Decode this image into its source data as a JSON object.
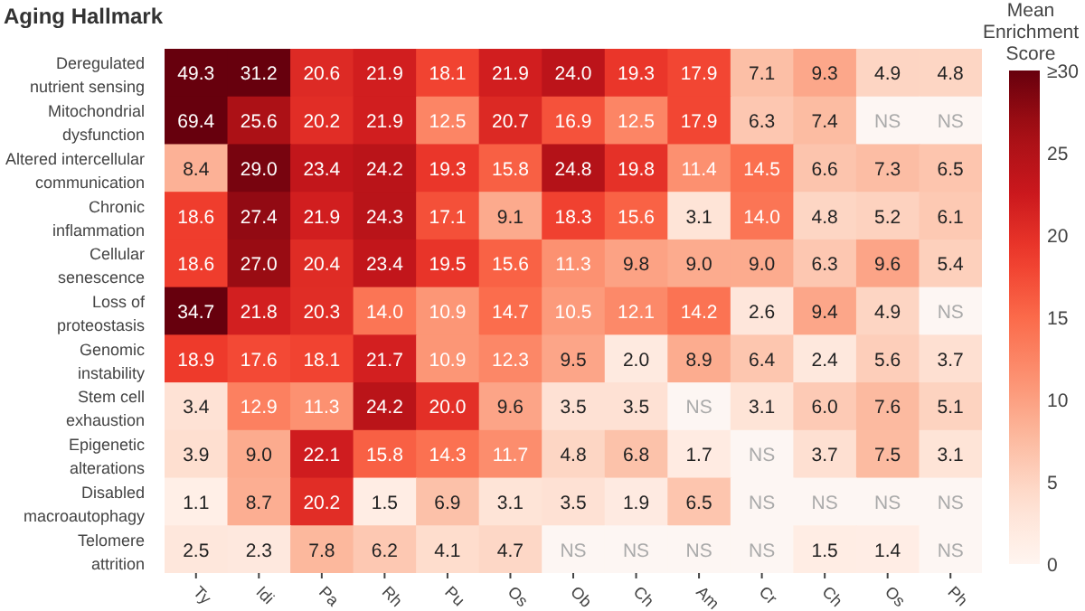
{
  "chart_data": {
    "type": "heatmap",
    "ylabel": "Aging Hallmark",
    "clabel": "Mean Enrichment Score",
    "categories": [
      "Ty",
      "Idi",
      "Pa",
      "Rh",
      "Pu",
      "Os",
      "Ob",
      "Ch",
      "Am",
      "Cr",
      "Ch",
      "Os",
      "Ph"
    ],
    "y_categories": [
      "Deregulated nutrient sensing",
      "Mitochondrial dysfunction",
      "Altered intercellular communication",
      "Chronic inflammation",
      "Cellular senescence",
      "Loss of proteostasis",
      "Genomic instability",
      "Stem cell exhaustion",
      "Epigenetic alterations",
      "Disabled macroautophagy",
      "Telomere attrition"
    ],
    "cells": [
      [
        49.3,
        31.2,
        20.6,
        21.9,
        18.1,
        21.9,
        24.0,
        19.3,
        17.9,
        7.1,
        9.3,
        4.9,
        4.8
      ],
      [
        69.4,
        25.6,
        20.2,
        21.9,
        12.5,
        20.7,
        16.9,
        12.5,
        17.9,
        6.3,
        7.4,
        null,
        null
      ],
      [
        8.4,
        29.0,
        23.4,
        24.2,
        19.3,
        15.8,
        24.8,
        19.8,
        11.4,
        14.5,
        6.6,
        7.3,
        6.5
      ],
      [
        18.6,
        27.4,
        21.9,
        24.3,
        17.1,
        9.1,
        18.3,
        15.6,
        3.1,
        14.0,
        4.8,
        5.2,
        6.1
      ],
      [
        18.6,
        27.0,
        20.4,
        23.4,
        19.5,
        15.6,
        11.3,
        9.8,
        9.0,
        9.0,
        6.3,
        9.6,
        5.4
      ],
      [
        34.7,
        21.8,
        20.3,
        14.0,
        10.9,
        14.7,
        10.5,
        12.1,
        14.2,
        2.6,
        9.4,
        4.9,
        null
      ],
      [
        18.9,
        17.6,
        18.1,
        21.7,
        10.9,
        12.3,
        9.5,
        2.0,
        8.9,
        6.4,
        2.4,
        5.6,
        3.7
      ],
      [
        3.4,
        12.9,
        11.3,
        24.2,
        20.0,
        9.6,
        3.5,
        3.5,
        null,
        3.1,
        6.0,
        7.6,
        5.1
      ],
      [
        3.9,
        9.0,
        22.1,
        15.8,
        14.3,
        11.7,
        4.8,
        6.8,
        1.7,
        null,
        3.7,
        7.5,
        3.1
      ],
      [
        1.1,
        8.7,
        20.2,
        1.5,
        6.9,
        3.1,
        3.5,
        1.9,
        6.5,
        null,
        null,
        null,
        null
      ],
      [
        2.5,
        2.3,
        7.8,
        6.2,
        4.1,
        4.7,
        null,
        null,
        null,
        null,
        1.5,
        1.4,
        null
      ]
    ],
    "cell_labels": [
      [
        "49.3",
        "31.2",
        "20.6",
        "21.9",
        "18.1",
        "21.9",
        "24.0",
        "19.3",
        "17.9",
        "7.1",
        "9.3",
        "4.9",
        "4.8"
      ],
      [
        "69.4",
        "25.6",
        "20.2",
        "21.9",
        "12.5",
        "20.7",
        "16.9",
        "12.5",
        "17.9",
        "6.3",
        "7.4",
        "NS",
        "NS"
      ],
      [
        "8.4",
        "29.0",
        "23.4",
        "24.2",
        "19.3",
        "15.8",
        "24.8",
        "19.8",
        "11.4",
        "14.5",
        "6.6",
        "7.3",
        "6.5"
      ],
      [
        "18.6",
        "27.4",
        "21.9",
        "24.3",
        "17.1",
        "9.1",
        "18.3",
        "15.6",
        "3.1",
        "14.0",
        "4.8",
        "5.2",
        "6.1"
      ],
      [
        "18.6",
        "27.0",
        "20.4",
        "23.4",
        "19.5",
        "15.6",
        "11.3",
        "9.8",
        "9.0",
        "9.0",
        "6.3",
        "9.6",
        "5.4"
      ],
      [
        "34.7",
        "21.8",
        "20.3",
        "14.0",
        "10.9",
        "14.7",
        "10.5",
        "12.1",
        "14.2",
        "2.6",
        "9.4",
        "4.9",
        "NS"
      ],
      [
        "18.9",
        "17.6",
        "18.1",
        "21.7",
        "10.9",
        "12.3",
        "9.5",
        "2.0",
        "8.9",
        "6.4",
        "2.4",
        "5.6",
        "3.7"
      ],
      [
        "3.4",
        "12.9",
        "11.3",
        "24.2",
        "20.0",
        "9.6",
        "3.5",
        "3.5",
        "NS",
        "3.1",
        "6.0",
        "7.6",
        "5.1"
      ],
      [
        "3.9",
        "9.0",
        "22.1",
        "15.8",
        "14.3",
        "11.7",
        "4.8",
        "6.8",
        "1.7",
        "NS",
        "3.7",
        "7.5",
        "3.1"
      ],
      [
        "1.1",
        "8.7",
        "20.2",
        "1.5",
        "6.9",
        "3.1",
        "3.5",
        "1.9",
        "6.5",
        "NS",
        "NS",
        "NS",
        "NS"
      ],
      [
        "2.5",
        "2.3",
        "7.8",
        "6.2",
        "4.1",
        "4.7",
        "NS",
        "NS",
        "NS",
        "NS",
        "1.5",
        "1.4",
        "NS"
      ]
    ],
    "clim": [
      0,
      30
    ],
    "cticks": [
      0,
      5,
      10,
      15,
      20,
      25,
      {
        "value": 30,
        "label": "≥30"
      }
    ]
  }
}
